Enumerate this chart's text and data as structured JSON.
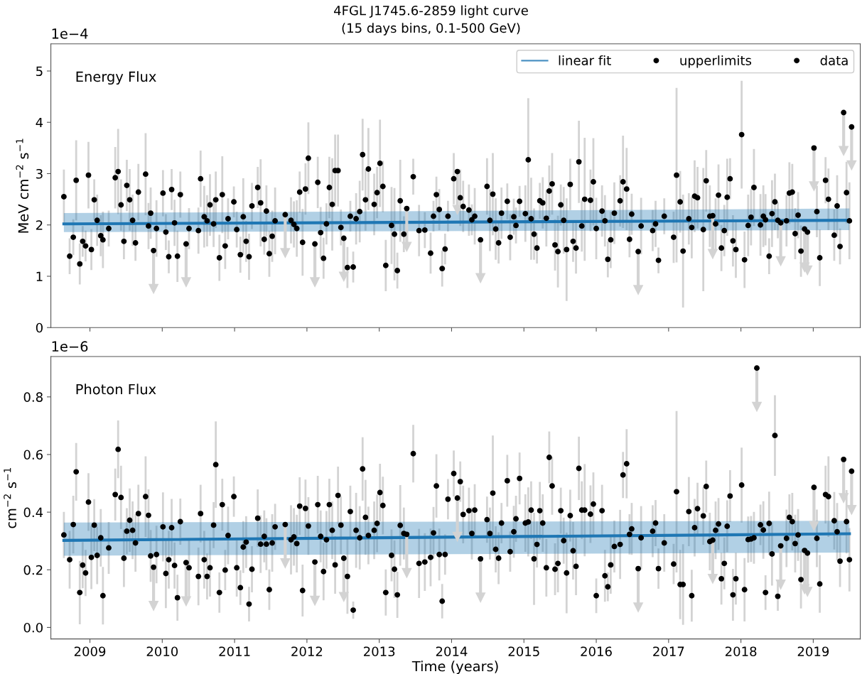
{
  "chart_data": [
    {
      "type": "scatter",
      "title": "4FGL J1745.6-2859 light curve",
      "subtitle": "(15 days bins, 0.1-500 GeV)",
      "annotations": [
        "Energy Flux",
        "1e−4"
      ],
      "ylabel": "MeV cm$^{−2}$ s$^{−1}$",
      "xlim": [
        2008.46,
        2019.65
      ],
      "xticks": [
        2009,
        2010,
        2011,
        2012,
        2013,
        2014,
        2015,
        2016,
        2017,
        2018,
        2019
      ],
      "ylim": [
        0,
        5.53
      ],
      "yticks": [
        0,
        1,
        2,
        3,
        4,
        5
      ],
      "tick_labels": "y",
      "legend": "top right",
      "series": [
        {
          "name": "linear fit",
          "type": "line",
          "color": "#1f77b4",
          "x": [
            2008.64,
            2019.5
          ],
          "values": [
            2.02,
            2.09
          ],
          "lower": [
            1.86,
            1.9
          ],
          "upper": [
            2.23,
            2.32
          ]
        },
        {
          "name": "upperlimits",
          "marker": "circle",
          "color": "#000000",
          "x": [
            2009.88,
            2010.33,
            2011.7,
            2012.11,
            2012.51,
            2013.38,
            2014.08,
            2014.4,
            2016.58,
            2017.61,
            2018.55,
            2018.88,
            2018.92,
            2019.01,
            2019.42,
            2019.53
          ],
          "values": [
            1.5,
            1.63,
            2.2,
            1.63,
            1.74,
            2.32,
            3.04,
            1.71,
            1.48,
            2.18,
            2.04,
            1.92,
            1.86,
            3.5,
            4.19,
            3.91
          ],
          "errors": [
            [
              0.75,
              1.5
            ],
            [
              0.88,
              1.63
            ],
            [
              1.45,
              2.2
            ],
            [
              0.88,
              1.63
            ],
            [
              0.99,
              1.74
            ],
            [
              1.57,
              2.32
            ],
            [
              2.29,
              3.04
            ],
            [
              0.96,
              1.71
            ],
            [
              0.73,
              1.48
            ],
            [
              1.43,
              2.18
            ],
            [
              1.29,
              2.04
            ],
            [
              1.17,
              1.92
            ],
            [
              1.11,
              1.86
            ],
            [
              2.75,
              3.5
            ],
            [
              3.44,
              4.19
            ],
            [
              3.16,
              3.91
            ]
          ]
        },
        {
          "name": "data",
          "marker": "circle",
          "color": "#000000",
          "x": [
            2008.64,
            2008.72,
            2008.77,
            2008.81,
            2008.86,
            2008.9,
            2008.94,
            2008.98,
            2009.02,
            2009.06,
            2009.1,
            2009.15,
            2009.18,
            2009.26,
            2009.35,
            2009.39,
            2009.43,
            2009.47,
            2009.51,
            2009.55,
            2009.59,
            2009.63,
            2009.67,
            2009.77,
            2009.81,
            2009.84,
            2009.92,
            2010.01,
            2010.05,
            2010.09,
            2010.13,
            2010.17,
            2010.21,
            2010.25,
            2010.37,
            2010.5,
            2010.53,
            2010.58,
            2010.62,
            2010.66,
            2010.71,
            2010.74,
            2010.79,
            2010.83,
            2010.87,
            2010.91,
            2010.99,
            2011.03,
            2011.08,
            2011.12,
            2011.16,
            2011.2,
            2011.24,
            2011.32,
            2011.36,
            2011.41,
            2011.44,
            2011.48,
            2011.52,
            2011.56,
            2011.78,
            2011.82,
            2011.86,
            2011.9,
            2011.94,
            2011.98,
            2012.02,
            2012.15,
            2012.19,
            2012.23,
            2012.27,
            2012.31,
            2012.35,
            2012.39,
            2012.43,
            2012.47,
            2012.56,
            2012.6,
            2012.64,
            2012.68,
            2012.73,
            2012.77,
            2012.81,
            2012.85,
            2012.93,
            2012.97,
            2013.01,
            2013.05,
            2013.09,
            2013.17,
            2013.21,
            2013.25,
            2013.29,
            2013.34,
            2013.47,
            2013.55,
            2013.63,
            2013.71,
            2013.75,
            2013.79,
            2013.83,
            2013.87,
            2013.91,
            2013.95,
            2014.03,
            2014.12,
            2014.16,
            2014.24,
            2014.28,
            2014.32,
            2014.49,
            2014.53,
            2014.57,
            2014.61,
            2014.65,
            2014.69,
            2014.77,
            2014.81,
            2014.86,
            2014.89,
            2014.94,
            2015.02,
            2015.06,
            2015.1,
            2015.14,
            2015.18,
            2015.22,
            2015.26,
            2015.31,
            2015.35,
            2015.39,
            2015.43,
            2015.47,
            2015.51,
            2015.55,
            2015.59,
            2015.64,
            2015.68,
            2015.72,
            2015.76,
            2015.8,
            2015.84,
            2015.92,
            2015.96,
            2016.0,
            2016.08,
            2016.12,
            2016.16,
            2016.2,
            2016.25,
            2016.33,
            2016.37,
            2016.42,
            2016.46,
            2016.49,
            2016.62,
            2016.78,
            2016.82,
            2016.86,
            2016.94,
            2017.07,
            2017.11,
            2017.16,
            2017.2,
            2017.28,
            2017.32,
            2017.36,
            2017.4,
            2017.48,
            2017.52,
            2017.57,
            2017.65,
            2017.69,
            2017.73,
            2017.77,
            2017.81,
            2017.85,
            2017.89,
            2017.93,
            2018.01,
            2018.05,
            2018.1,
            2018.14,
            2018.18,
            2018.27,
            2018.31,
            2018.34,
            2018.39,
            2018.43,
            2018.47,
            2018.51,
            2018.63,
            2018.67,
            2018.71,
            2018.75,
            2018.79,
            2018.83,
            2019.05,
            2019.09,
            2019.17,
            2019.21,
            2019.29,
            2019.33,
            2019.37,
            2019.46,
            2019.5
          ],
          "values": [
            2.55,
            1.39,
            1.76,
            2.87,
            1.24,
            1.68,
            1.59,
            2.97,
            1.52,
            2.49,
            2.09,
            1.79,
            1.71,
            1.93,
            2.92,
            3.04,
            2.39,
            1.68,
            2.77,
            2.49,
            2.09,
            1.65,
            2.64,
            2.99,
            1.98,
            2.23,
            1.93,
            2.62,
            1.86,
            1.38,
            2.69,
            2.04,
            1.39,
            2.59,
            1.93,
            1.89,
            2.9,
            2.16,
            2.08,
            2.39,
            2.02,
            2.49,
            1.36,
            2.59,
            1.59,
            2.12,
            2.45,
            1.91,
            1.42,
            2.16,
            1.68,
            1.38,
            2.37,
            2.73,
            2.43,
            1.72,
            2.27,
            1.44,
            1.78,
            2.08,
            2.09,
            2.01,
            1.93,
            2.64,
            1.66,
            2.7,
            3.3,
            2.83,
            1.85,
            1.35,
            2.02,
            2.73,
            2.4,
            3.06,
            3.06,
            1.95,
            1.17,
            2.17,
            1.18,
            2.12,
            2.26,
            3.37,
            2.49,
            3.09,
            2.4,
            2.63,
            3.2,
            2.75,
            1.21,
            1.99,
            1.82,
            1.11,
            2.47,
            1.82,
            2.94,
            1.89,
            1.9,
            1.45,
            2.17,
            2.59,
            2.3,
            1.15,
            1.53,
            2.17,
            2.9,
            2.53,
            2.36,
            2.29,
            2.1,
            2.17,
            2.75,
            2.09,
            2.6,
            1.92,
            1.65,
            2.23,
            2.46,
            1.76,
            2.16,
            1.99,
            2.46,
            2.22,
            3.27,
            2.12,
            1.82,
            1.55,
            2.47,
            2.43,
            2.13,
            2.66,
            2.8,
            1.61,
            1.48,
            2.39,
            2.09,
            1.52,
            2.79,
            1.68,
            1.55,
            3.23,
            1.98,
            2.5,
            2.48,
            2.84,
            1.93,
            2.27,
            2.08,
            1.33,
            1.71,
            2.23,
            2.47,
            2.84,
            2.7,
            1.72,
            2.21,
            1.98,
            1.89,
            2.02,
            1.31,
            2.17,
            1.76,
            2.97,
            2.45,
            1.49,
            2.12,
            1.95,
            2.56,
            2.53,
            1.91,
            2.86,
            2.17,
            2.02,
            2.58,
            1.55,
            1.89,
            2.54,
            2.9,
            1.69,
            1.52,
            3.76,
            1.32,
            1.99,
            2.15,
            2.73,
            2.0,
            2.17,
            2.1,
            1.39,
            2.22,
            2.45,
            2.09,
            2.08,
            2.62,
            2.64,
            1.83,
            2.19,
            1.49,
            2.26,
            1.36,
            2.87,
            2.5,
            1.8,
            2.37,
            1.58,
            2.63,
            2.08
          ],
          "errors": [
            0.53,
            0.35,
            0.35,
            0.78,
            0.4,
            0.3,
            0.3,
            0.65,
            0.4,
            0.4,
            0.5,
            0.4,
            0.55,
            0.35,
            0.6,
            0.83,
            0.5,
            0.35,
            0.5,
            0.6,
            0.5,
            0.35,
            0.55,
            0.8,
            0.45,
            0.5,
            0.55,
            0.45,
            0.35,
            0.32,
            0.4,
            0.45,
            0.5,
            0.45,
            0.4,
            0.45,
            0.55,
            0.6,
            0.5,
            0.6,
            0.45,
            0.55,
            0.45,
            0.75,
            0.45,
            0.4,
            0.3,
            0.35,
            0.35,
            0.75,
            0.4,
            0.45,
            0.45,
            0.4,
            0.85,
            0.3,
            0.5,
            0.45,
            0.5,
            0.65,
            0.45,
            0.45,
            0.55,
            0.4,
            0.65,
            0.5,
            0.7,
            0.5,
            0.5,
            0.4,
            0.4,
            0.6,
            0.9,
            0.7,
            0.7,
            0.35,
            0.4,
            0.3,
            0.3,
            0.5,
            0.6,
            0.7,
            0.6,
            0.8,
            0.6,
            0.5,
            0.85,
            0.5,
            0.5,
            0.75,
            0.9,
            0.35,
            0.8,
            0.35,
            0.35,
            0.5,
            0.35,
            0.4,
            0.3,
            0.35,
            0.4,
            0.35,
            0.3,
            0.3,
            0.5,
            0.55,
            0.5,
            0.5,
            0.3,
            0.55,
            0.55,
            0.6,
            0.8,
            0.6,
            0.4,
            0.5,
            0.35,
            0.45,
            0.35,
            0.35,
            0.3,
            0.55,
            1.2,
            0.8,
            0.5,
            0.3,
            0.35,
            0.5,
            0.55,
            0.5,
            0.6,
            0.5,
            0.7,
            0.4,
            0.65,
            1.0,
            0.5,
            0.4,
            0.5,
            0.8,
            0.5,
            1.2,
            0.6,
            0.85,
            0.6,
            0.5,
            0.5,
            0.35,
            0.55,
            0.6,
            0.5,
            0.9,
            0.8,
            0.35,
            0.4,
            0.55,
            0.4,
            0.45,
            0.25,
            0.35,
            0.5,
            1.7,
            0.6,
            1.1,
            0.5,
            0.6,
            0.7,
            0.6,
            1.2,
            0.6,
            0.6,
            0.5,
            0.6,
            0.45,
            0.5,
            0.75,
            0.4,
            0.5,
            0.55,
            1.05,
            0.55,
            0.6,
            0.55,
            0.75,
            0.6,
            0.6,
            0.5,
            0.35,
            0.65,
            0.55,
            0.35,
            0.5,
            0.6,
            0.55,
            0.5,
            0.45,
            0.5,
            0.5,
            0.55,
            0.45,
            0.6,
            0.5,
            0.6,
            0.35,
            0.6,
            0.75
          ]
        }
      ]
    },
    {
      "type": "scatter",
      "annotations": [
        "Photon Flux",
        "1e−6"
      ],
      "xlabel": "Time (years)",
      "ylabel": "cm$^{−2}$ s$^{−1}$",
      "xlim": [
        2008.46,
        2019.65
      ],
      "xticks": [
        2009,
        2010,
        2011,
        2012,
        2013,
        2014,
        2015,
        2016,
        2017,
        2018,
        2019
      ],
      "ylim": [
        -0.04,
        0.94
      ],
      "yticks": [
        {
          "value": 0,
          "label": "0.0"
        },
        0.2,
        0.4,
        0.6,
        0.8
      ],
      "series": [
        {
          "type": "line",
          "color": "#1f77b4",
          "x": [
            2008.64,
            2019.5
          ],
          "values": [
            0.302,
            0.325
          ],
          "lower": [
            0.249,
            0.26
          ],
          "upper": [
            0.364,
            0.37
          ]
        },
        {
          "marker": "circle",
          "color": "#000000",
          "x": [
            2009.88,
            2010.33,
            2011.7,
            2012.11,
            2012.51,
            2013.38,
            2014.08,
            2014.4,
            2016.58,
            2017.61,
            2018.22,
            2018.55,
            2018.88,
            2018.92,
            2019.01,
            2019.42,
            2019.53
          ],
          "values": [
            0.209,
            0.225,
            0.357,
            0.227,
            0.24,
            0.323,
            0.449,
            0.238,
            0.204,
            0.303,
            0.9,
            0.283,
            0.267,
            0.258,
            0.486,
            0.583,
            0.542
          ],
          "errors": [
            [
              0.074,
              0.209
            ],
            [
              0.09,
              0.225
            ],
            [
              0.222,
              0.357
            ],
            [
              0.092,
              0.227
            ],
            [
              0.105,
              0.24
            ],
            [
              0.188,
              0.323
            ],
            [
              0.314,
              0.449
            ],
            [
              0.103,
              0.238
            ],
            [
              0.069,
              0.204
            ],
            [
              0.168,
              0.303
            ],
            [
              0.765,
              0.9
            ],
            [
              0.148,
              0.283
            ],
            [
              0.132,
              0.267
            ],
            [
              0.123,
              0.258
            ],
            [
              0.351,
              0.486
            ],
            [
              0.448,
              0.583
            ],
            [
              0.407,
              0.542
            ]
          ]
        },
        {
          "marker": "circle",
          "color": "#000000",
          "x": [
            2008.64,
            2008.72,
            2008.77,
            2008.81,
            2008.86,
            2008.9,
            2008.94,
            2008.98,
            2009.02,
            2009.06,
            2009.1,
            2009.15,
            2009.18,
            2009.26,
            2009.35,
            2009.39,
            2009.43,
            2009.47,
            2009.51,
            2009.55,
            2009.59,
            2009.63,
            2009.67,
            2009.77,
            2009.81,
            2009.84,
            2009.92,
            2010.01,
            2010.05,
            2010.09,
            2010.13,
            2010.17,
            2010.21,
            2010.25,
            2010.37,
            2010.5,
            2010.53,
            2010.58,
            2010.62,
            2010.66,
            2010.71,
            2010.74,
            2010.79,
            2010.83,
            2010.87,
            2010.91,
            2010.99,
            2011.03,
            2011.08,
            2011.12,
            2011.16,
            2011.2,
            2011.24,
            2011.32,
            2011.36,
            2011.41,
            2011.44,
            2011.48,
            2011.52,
            2011.56,
            2011.78,
            2011.82,
            2011.86,
            2011.9,
            2011.94,
            2011.98,
            2012.02,
            2012.15,
            2012.19,
            2012.23,
            2012.27,
            2012.31,
            2012.35,
            2012.39,
            2012.43,
            2012.47,
            2012.56,
            2012.6,
            2012.64,
            2012.68,
            2012.73,
            2012.77,
            2012.81,
            2012.85,
            2012.93,
            2012.97,
            2013.01,
            2013.05,
            2013.09,
            2013.17,
            2013.21,
            2013.25,
            2013.29,
            2013.34,
            2013.47,
            2013.55,
            2013.63,
            2013.71,
            2013.75,
            2013.79,
            2013.83,
            2013.87,
            2013.91,
            2013.95,
            2014.03,
            2014.12,
            2014.16,
            2014.24,
            2014.28,
            2014.32,
            2014.49,
            2014.53,
            2014.57,
            2014.61,
            2014.65,
            2014.69,
            2014.77,
            2014.81,
            2014.86,
            2014.89,
            2014.94,
            2015.02,
            2015.06,
            2015.1,
            2015.14,
            2015.18,
            2015.22,
            2015.26,
            2015.31,
            2015.35,
            2015.39,
            2015.43,
            2015.47,
            2015.51,
            2015.55,
            2015.59,
            2015.64,
            2015.68,
            2015.72,
            2015.76,
            2015.8,
            2015.84,
            2015.92,
            2015.96,
            2016.0,
            2016.08,
            2016.12,
            2016.16,
            2016.2,
            2016.25,
            2016.33,
            2016.37,
            2016.42,
            2016.46,
            2016.49,
            2016.62,
            2016.78,
            2016.82,
            2016.86,
            2016.94,
            2017.07,
            2017.11,
            2017.16,
            2017.2,
            2017.28,
            2017.32,
            2017.36,
            2017.4,
            2017.48,
            2017.52,
            2017.57,
            2017.65,
            2017.69,
            2017.73,
            2017.77,
            2017.81,
            2017.85,
            2017.89,
            2017.93,
            2018.01,
            2018.05,
            2018.1,
            2018.14,
            2018.18,
            2018.27,
            2018.31,
            2018.34,
            2018.39,
            2018.43,
            2018.47,
            2018.51,
            2018.63,
            2018.67,
            2018.71,
            2018.75,
            2018.79,
            2018.83,
            2019.05,
            2019.09,
            2019.17,
            2019.21,
            2019.29,
            2019.33,
            2019.37,
            2019.46,
            2019.5
          ],
          "values": [
            0.321,
            0.235,
            0.357,
            0.54,
            0.121,
            0.216,
            0.189,
            0.435,
            0.243,
            0.355,
            0.25,
            0.311,
            0.11,
            0.276,
            0.461,
            0.618,
            0.451,
            0.24,
            0.334,
            0.372,
            0.337,
            0.293,
            0.395,
            0.454,
            0.389,
            0.248,
            0.253,
            0.349,
            0.187,
            0.235,
            0.346,
            0.215,
            0.103,
            0.367,
            0.207,
            0.177,
            0.395,
            0.235,
            0.177,
            0.207,
            0.355,
            0.565,
            0.121,
            0.426,
            0.199,
            0.319,
            0.454,
            0.207,
            0.138,
            0.279,
            0.296,
            0.081,
            0.202,
            0.379,
            0.289,
            0.316,
            0.289,
            0.131,
            0.293,
            0.349,
            0.304,
            0.314,
            0.291,
            0.421,
            0.128,
            0.413,
            0.352,
            0.426,
            0.316,
            0.194,
            0.304,
            0.426,
            0.337,
            0.217,
            0.458,
            0.355,
            0.177,
            0.402,
            0.06,
            0.337,
            0.311,
            0.55,
            0.382,
            0.319,
            0.337,
            0.361,
            0.468,
            0.423,
            0.121,
            0.25,
            0.202,
            0.113,
            0.354,
            0.326,
            0.603,
            0.222,
            0.227,
            0.243,
            0.328,
            0.491,
            0.253,
            0.091,
            0.253,
            0.445,
            0.534,
            0.506,
            0.392,
            0.405,
            0.326,
            0.407,
            0.374,
            0.326,
            0.466,
            0.271,
            0.24,
            0.362,
            0.509,
            0.263,
            0.332,
            0.377,
            0.517,
            0.362,
            0.366,
            0.407,
            0.238,
            0.288,
            0.405,
            0.362,
            0.207,
            0.59,
            0.491,
            0.202,
            0.222,
            0.405,
            0.301,
            0.189,
            0.388,
            0.266,
            0.212,
            0.552,
            0.407,
            0.407,
            0.393,
            0.428,
            0.11,
            0.405,
            0.179,
            0.141,
            0.217,
            0.281,
            0.288,
            0.529,
            0.568,
            0.323,
            0.342,
            0.311,
            0.334,
            0.362,
            0.204,
            0.293,
            0.22,
            0.471,
            0.149,
            0.149,
            0.402,
            0.11,
            0.346,
            0.412,
            0.387,
            0.489,
            0.298,
            0.337,
            0.359,
            0.169,
            0.222,
            0.351,
            0.456,
            0.113,
            0.169,
            0.494,
            0.131,
            0.305,
            0.307,
            0.311,
            0.356,
            0.338,
            0.121,
            0.361,
            0.255,
            0.666,
            0.108,
            0.309,
            0.382,
            0.367,
            0.291,
            0.321,
            0.166,
            0.309,
            0.151,
            0.461,
            0.454,
            0.37,
            0.332,
            0.23,
            0.367,
            0.235
          ],
          "errors": [
            0.08,
            0.1,
            0.1,
            0.1,
            0.11,
            0.08,
            0.08,
            0.1,
            0.11,
            0.09,
            0.1,
            0.1,
            0.1,
            0.09,
            0.09,
            0.1,
            0.11,
            0.1,
            0.08,
            0.11,
            0.1,
            0.1,
            0.1,
            0.14,
            0.09,
            0.09,
            0.1,
            0.12,
            0.12,
            0.1,
            0.1,
            0.08,
            0.08,
            0.08,
            0.1,
            0.1,
            0.1,
            0.1,
            0.08,
            0.1,
            0.08,
            0.15,
            0.07,
            0.09,
            0.07,
            0.1,
            0.07,
            0.1,
            0.06,
            0.09,
            0.09,
            0.06,
            0.08,
            0.1,
            0.1,
            0.09,
            0.09,
            0.07,
            0.1,
            0.08,
            0.12,
            0.1,
            0.1,
            0.1,
            0.09,
            0.1,
            0.1,
            0.1,
            0.09,
            0.1,
            0.1,
            0.09,
            0.1,
            0.1,
            0.1,
            0.1,
            0.13,
            0.09,
            0.03,
            0.13,
            0.11,
            0.11,
            0.13,
            0.1,
            0.1,
            0.1,
            0.1,
            0.1,
            0.08,
            0.09,
            0.1,
            0.08,
            0.14,
            0.09,
            0.1,
            0.12,
            0.1,
            0.1,
            0.09,
            0.11,
            0.09,
            0.06,
            0.07,
            0.07,
            0.08,
            0.07,
            0.1,
            0.08,
            0.09,
            0.09,
            0.08,
            0.09,
            0.2,
            0.08,
            0.09,
            0.07,
            0.09,
            0.07,
            0.09,
            0.08,
            0.09,
            0.1,
            0.12,
            0.1,
            0.16,
            0.08,
            0.1,
            0.1,
            0.1,
            0.09,
            0.1,
            0.09,
            0.1,
            0.08,
            0.08,
            0.14,
            0.09,
            0.1,
            0.1,
            0.11,
            0.1,
            0.16,
            0.1,
            0.11,
            0.06,
            0.09,
            0.09,
            0.05,
            0.1,
            0.09,
            0.12,
            0.08,
            0.12,
            0.07,
            0.09,
            0.11,
            0.09,
            0.08,
            0.07,
            0.1,
            0.07,
            0.28,
            0.12,
            0.14,
            0.12,
            0.09,
            0.1,
            0.09,
            0.1,
            0.09,
            0.1,
            0.1,
            0.09,
            0.09,
            0.09,
            0.09,
            0.09,
            0.09,
            0.09,
            0.13,
            0.11,
            0.08,
            0.08,
            0.09,
            0.07,
            0.1,
            0.06,
            0.11,
            0.11,
            0.14,
            0.05,
            0.1,
            0.08,
            0.1,
            0.1,
            0.09,
            0.1,
            0.1,
            0.1,
            0.1,
            0.14,
            0.1,
            0.1,
            0.09,
            0.11,
            0.11
          ]
        }
      ]
    }
  ]
}
